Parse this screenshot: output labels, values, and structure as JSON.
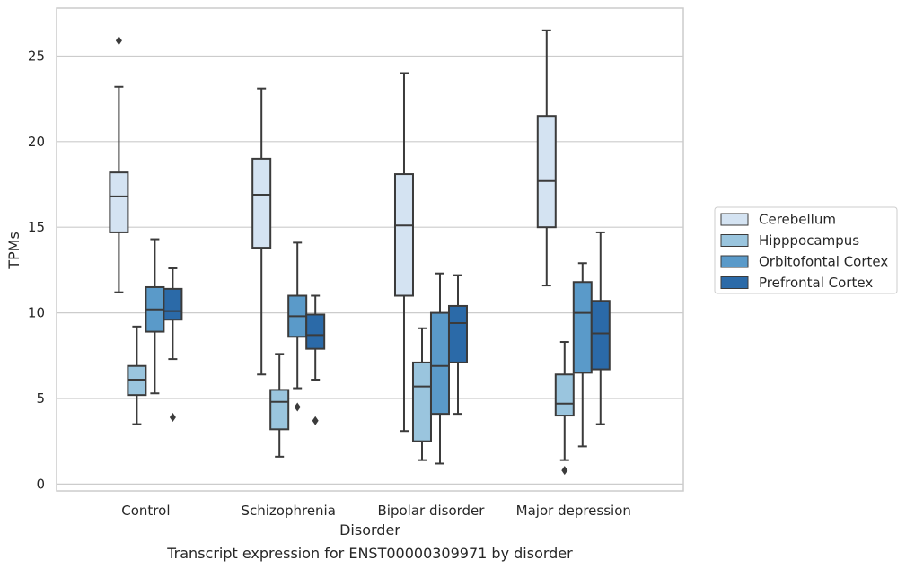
{
  "chart_data": {
    "type": "box",
    "caption": "Transcript expression for ENST00000309971 by disorder",
    "xlabel": "Disorder",
    "ylabel": "TPMs",
    "ylim": [
      -0.4,
      27.8
    ],
    "yticks": [
      0,
      5,
      10,
      15,
      20,
      25
    ],
    "grid": true,
    "legend_placement": "right",
    "categories": [
      "Control",
      "Schizophrenia",
      "Bipolar disorder",
      "Major depression"
    ],
    "series": [
      {
        "name": "Cerebellum",
        "color": "#d4e3f2",
        "boxes": [
          {
            "whisker_low": 11.2,
            "q1": 14.7,
            "median": 16.8,
            "q3": 18.2,
            "whisker_high": 23.2,
            "outliers": [
              25.9
            ]
          },
          {
            "whisker_low": 6.4,
            "q1": 13.8,
            "median": 16.9,
            "q3": 19.0,
            "whisker_high": 23.1,
            "outliers": []
          },
          {
            "whisker_low": 3.1,
            "q1": 11.0,
            "median": 15.1,
            "q3": 18.1,
            "whisker_high": 24.0,
            "outliers": []
          },
          {
            "whisker_low": 11.6,
            "q1": 15.0,
            "median": 17.7,
            "q3": 21.5,
            "whisker_high": 26.5,
            "outliers": []
          }
        ]
      },
      {
        "name": "Hipppocampus",
        "color": "#9ac5de",
        "boxes": [
          {
            "whisker_low": 3.5,
            "q1": 5.2,
            "median": 6.1,
            "q3": 6.9,
            "whisker_high": 9.2,
            "outliers": []
          },
          {
            "whisker_low": 1.6,
            "q1": 3.2,
            "median": 4.8,
            "q3": 5.5,
            "whisker_high": 7.6,
            "outliers": []
          },
          {
            "whisker_low": 1.4,
            "q1": 2.5,
            "median": 5.7,
            "q3": 7.1,
            "whisker_high": 9.1,
            "outliers": []
          },
          {
            "whisker_low": 1.4,
            "q1": 4.0,
            "median": 4.7,
            "q3": 6.4,
            "whisker_high": 8.3,
            "outliers": [
              0.8
            ]
          }
        ]
      },
      {
        "name": "Orbitofontal Cortex",
        "color": "#5a9ac9",
        "boxes": [
          {
            "whisker_low": 5.3,
            "q1": 8.9,
            "median": 10.2,
            "q3": 11.5,
            "whisker_high": 14.3,
            "outliers": []
          },
          {
            "whisker_low": 5.6,
            "q1": 8.6,
            "median": 9.8,
            "q3": 11.0,
            "whisker_high": 14.1,
            "outliers": [
              4.5
            ]
          },
          {
            "whisker_low": 1.2,
            "q1": 4.1,
            "median": 6.9,
            "q3": 10.0,
            "whisker_high": 12.3,
            "outliers": []
          },
          {
            "whisker_low": 2.2,
            "q1": 6.5,
            "median": 10.0,
            "q3": 11.8,
            "whisker_high": 12.9,
            "outliers": []
          }
        ]
      },
      {
        "name": "Prefrontal Cortex",
        "color": "#2b6aa8",
        "boxes": [
          {
            "whisker_low": 7.3,
            "q1": 9.6,
            "median": 10.1,
            "q3": 11.4,
            "whisker_high": 12.6,
            "outliers": [
              3.9
            ]
          },
          {
            "whisker_low": 6.1,
            "q1": 7.9,
            "median": 8.7,
            "q3": 9.9,
            "whisker_high": 11.0,
            "outliers": [
              3.7
            ]
          },
          {
            "whisker_low": 4.1,
            "q1": 7.1,
            "median": 9.4,
            "q3": 10.4,
            "whisker_high": 12.2,
            "outliers": []
          },
          {
            "whisker_low": 3.5,
            "q1": 6.7,
            "median": 8.8,
            "q3": 10.7,
            "whisker_high": 14.7,
            "outliers": []
          }
        ]
      }
    ]
  }
}
